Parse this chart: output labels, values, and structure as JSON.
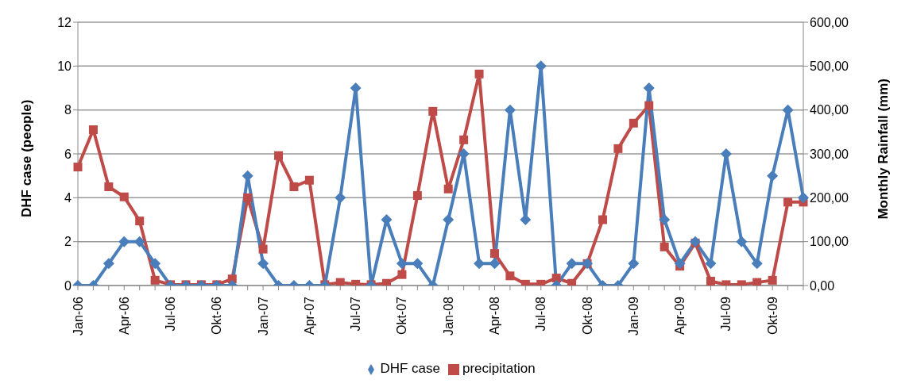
{
  "chart_data": {
    "type": "line",
    "categories": [
      "Jan-06",
      null,
      null,
      "Apr-06",
      null,
      null,
      "Jul-06",
      null,
      null,
      "Okt-06",
      null,
      null,
      "Jan-07",
      null,
      null,
      "Apr-07",
      null,
      null,
      "Jul-07",
      null,
      null,
      "Okt-07",
      null,
      null,
      "Jan-08",
      null,
      null,
      "Apr-08",
      null,
      null,
      "Jul-08",
      null,
      null,
      "Okt-08",
      null,
      null,
      "Jan-09",
      null,
      null,
      "Apr-09",
      null,
      null,
      "Jul-09",
      null,
      null,
      "Okt-09",
      null,
      null
    ],
    "series": [
      {
        "name": "DHF case",
        "color": "#4a7ebb",
        "marker": "diamond",
        "values": [
          0,
          0,
          1,
          2,
          2,
          1,
          0,
          0,
          0,
          0,
          0,
          5,
          1,
          0,
          0,
          0,
          0,
          4,
          9,
          0,
          3,
          1,
          1,
          0,
          3,
          6,
          1,
          1,
          8,
          3,
          10,
          0,
          1,
          1,
          0,
          0,
          1,
          9,
          3,
          1,
          2,
          1,
          6,
          2,
          1,
          5,
          8,
          4
        ]
      },
      {
        "name": "precipitation",
        "color": "#be4b48",
        "marker": "square",
        "axis": "y2",
        "values": [
          270,
          355,
          225,
          202,
          147,
          12,
          2,
          2,
          2,
          2,
          15,
          200,
          83,
          296,
          225,
          240,
          2,
          7,
          3,
          2,
          5,
          25,
          205,
          397,
          220,
          332,
          482,
          73,
          22,
          3,
          3,
          17,
          5,
          50,
          150,
          312,
          370,
          410,
          88,
          44,
          97,
          10,
          2,
          2,
          7,
          12,
          190,
          190
        ]
      }
    ],
    "ylabel": "DHF case (people)",
    "y2label": "Monthly Rainfall (mm)",
    "ylim": [
      0,
      12
    ],
    "yticks": [
      0,
      2,
      4,
      6,
      8,
      10,
      12
    ],
    "y2lim": [
      0,
      600
    ],
    "y2ticks": [
      {
        "value": 0,
        "label": "0,00"
      },
      {
        "value": 100,
        "label": "100,00"
      },
      {
        "value": 200,
        "label": "200,00"
      },
      {
        "value": 300,
        "label": "300,00"
      },
      {
        "value": 400,
        "label": "400,00"
      },
      {
        "value": 500,
        "label": "500,00"
      },
      {
        "value": 600,
        "label": "600,00"
      }
    ],
    "grid": "y",
    "legend": "bottom"
  }
}
